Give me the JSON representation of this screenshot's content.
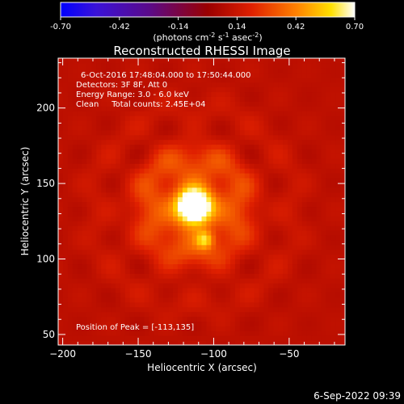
{
  "chart_data": {
    "type": "heatmap",
    "title": "Reconstructed RHESSI Image",
    "xlabel": "Heliocentric X (arcsec)",
    "ylabel": "Heliocentric Y (arcsec)",
    "xlim": [
      -203,
      -13
    ],
    "ylim": [
      43,
      233
    ],
    "xticks": [
      -200,
      -150,
      -100,
      -50
    ],
    "yticks": [
      50,
      100,
      150,
      200
    ],
    "colorbar": {
      "range": [
        -0.7,
        0.7
      ],
      "ticks": [
        "-0.70",
        "-0.42",
        "-0.14",
        "0.14",
        "0.42",
        "0.70"
      ],
      "label_main": "(photons cm",
      "label_exp1": "-2",
      "label_mid": " s",
      "label_exp2": "-1",
      "label_end": " asec",
      "label_exp3": "-2",
      "label_close": ")"
    },
    "annotations": [
      "6-Oct-2016 17:48:04.000 to 17:50:44.000",
      "Detectors: 3F 8F, Att 0",
      "Energy Range: 3.0 - 6.0 keV",
      "Clean     Total counts: 2.45E+04"
    ],
    "peak_label": "Position of Peak = [-113,135]",
    "peak": {
      "x": -113,
      "y": 135,
      "value": 0.7
    },
    "secondary_source": {
      "x": -106,
      "y": 113,
      "value": 0.38
    },
    "background_level": 0.1
  },
  "footer": {
    "timestamp": "6-Sep-2022 09:39"
  }
}
